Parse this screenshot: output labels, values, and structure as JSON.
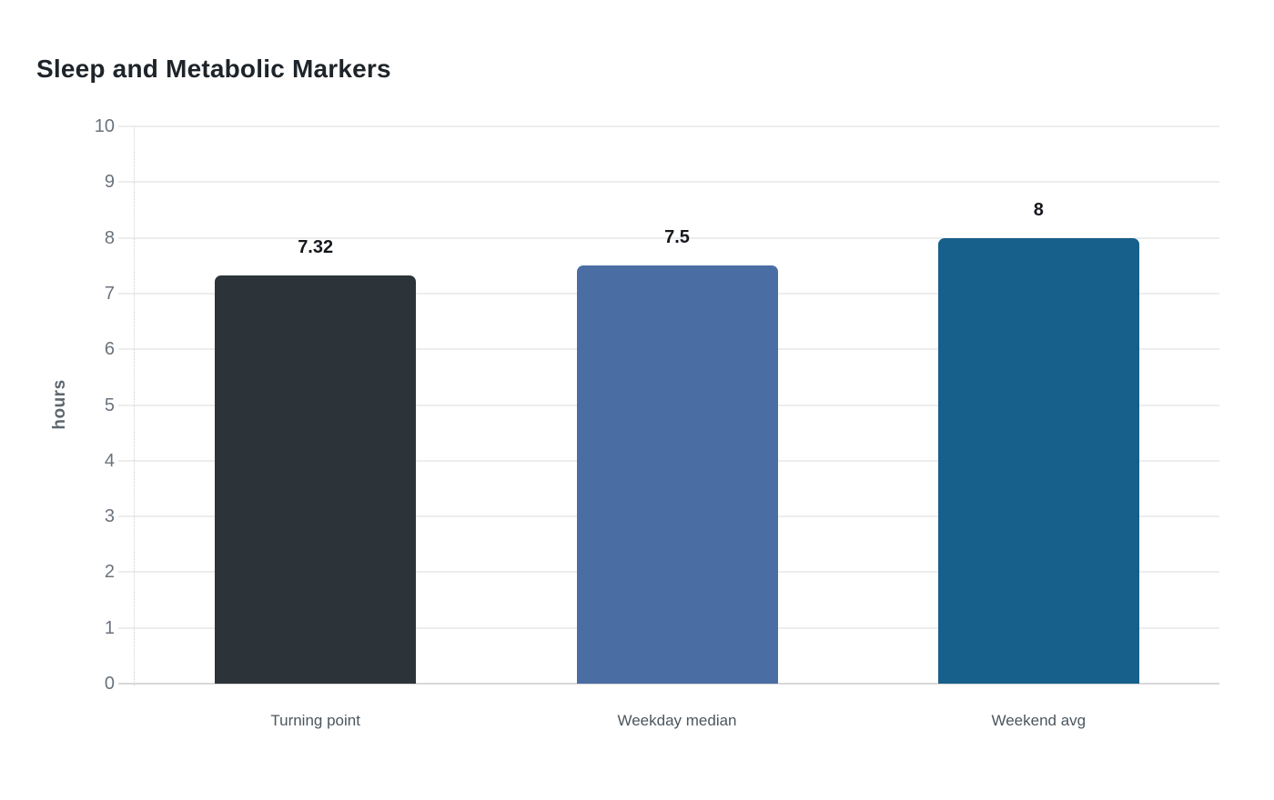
{
  "chart_data": {
    "type": "bar",
    "title": "Sleep and Metabolic Markers",
    "ylabel": "hours",
    "xlabel": "",
    "categories": [
      "Turning point",
      "Weekday median",
      "Weekend avg"
    ],
    "values": [
      7.32,
      7.5,
      8
    ],
    "value_labels": [
      "7.32",
      "7.5",
      "8"
    ],
    "bar_colors": [
      "#2c343a",
      "#4a6da4",
      "#16608b"
    ],
    "ylim": [
      0,
      10
    ],
    "ytick_step": 1,
    "ytick_labels": [
      "0",
      "1",
      "2",
      "3",
      "4",
      "5",
      "6",
      "7",
      "8",
      "9",
      "10"
    ],
    "grid": true,
    "legend_position": "none",
    "colors": {
      "background": "#ffffff",
      "title": "#1e2429",
      "tick_label": "#6a737c",
      "axis_label": "#5c666e",
      "category_label": "#4c565e",
      "value_label": "#15191d",
      "gridline": "#ededed",
      "baseline": "#d8d8d8",
      "axis_dotted": "#cfcfcf"
    }
  }
}
